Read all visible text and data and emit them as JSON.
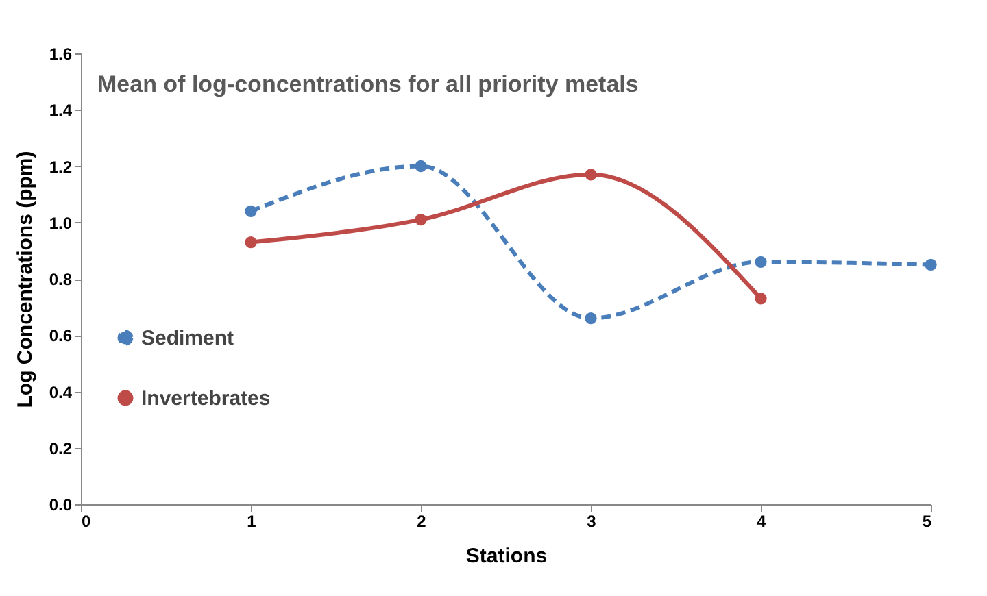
{
  "chart_data": {
    "type": "line",
    "title": "Mean of log-concentrations for all priority metals",
    "xlabel": "Stations",
    "ylabel": "Log Concentrations (ppm)",
    "x": [
      1,
      2,
      3,
      4,
      5
    ],
    "series": [
      {
        "name": "Sediment",
        "color": "#4a7ebb",
        "line_style": "dashed",
        "values": [
          1.04,
          1.2,
          0.66,
          0.86,
          0.85
        ]
      },
      {
        "name": "Invertebrates",
        "color": "#be4b48",
        "line_style": "solid",
        "values": [
          0.93,
          1.01,
          1.17,
          0.73,
          null
        ]
      }
    ],
    "xlim": [
      0,
      5
    ],
    "xticks": [
      0,
      1,
      2,
      3,
      4,
      5
    ],
    "ylim": [
      0,
      1.6
    ],
    "yticks": [
      {
        "value": 0,
        "label": "0.0"
      },
      0.2,
      0.4,
      0.6,
      0.8,
      {
        "value": 1,
        "label": "1.0"
      },
      1.2,
      1.4,
      {
        "value": 1.6,
        "label": "1.6"
      }
    ],
    "marker": "circle",
    "legend": "left",
    "grid": false
  }
}
